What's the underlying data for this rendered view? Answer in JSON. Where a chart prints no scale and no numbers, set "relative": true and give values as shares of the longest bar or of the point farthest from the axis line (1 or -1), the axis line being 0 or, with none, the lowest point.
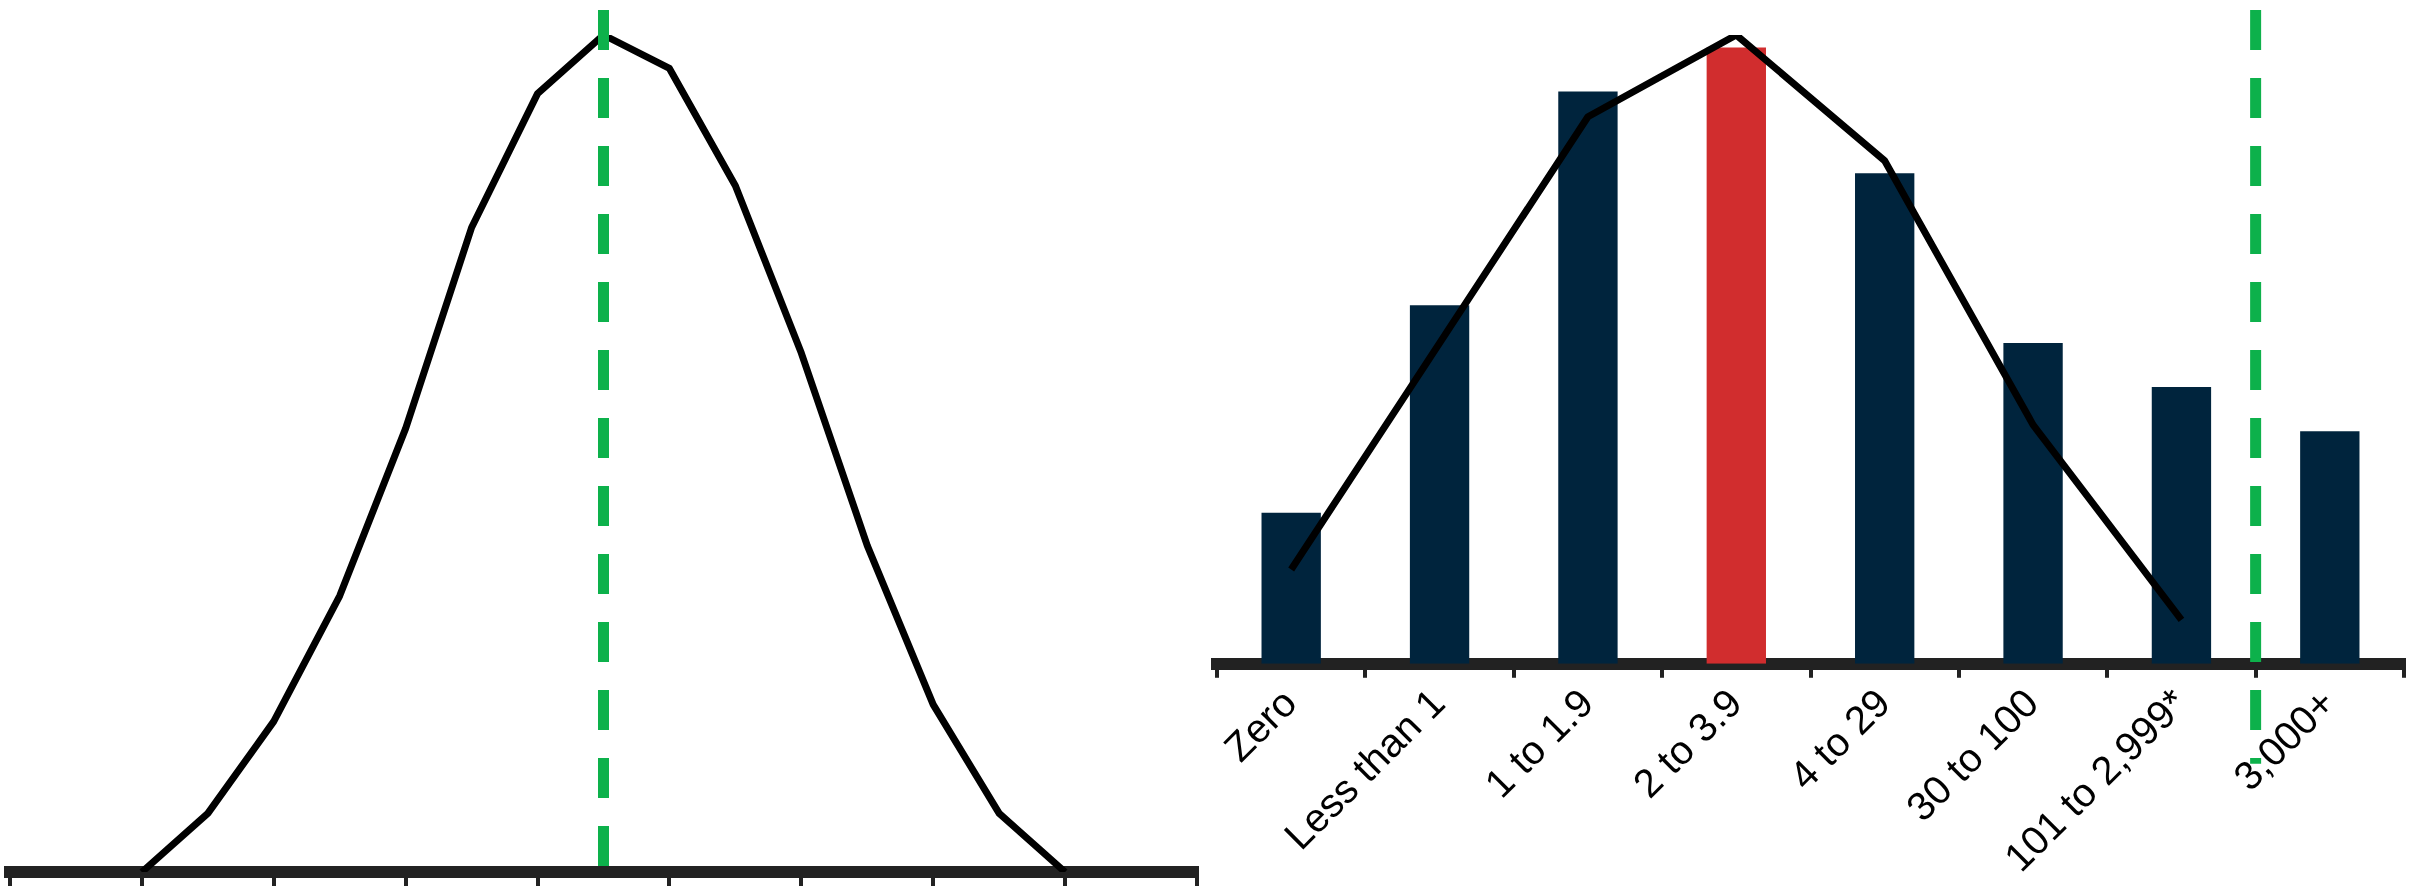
{
  "chart_data": [
    {
      "type": "line",
      "relative": true,
      "tick_labels": false,
      "legend": false,
      "grid": false,
      "marker": "none",
      "categories": [
        null,
        null,
        null,
        null,
        null,
        null,
        null,
        null,
        null,
        null,
        null,
        null,
        null,
        null,
        null,
        null,
        null,
        null,
        null
      ],
      "series": [
        {
          "color": "#000000",
          "values": [
            null,
            null,
            0,
            0.07,
            0.18,
            0.33,
            0.53,
            0.77,
            0.93,
            1,
            0.96,
            0.82,
            0.62,
            0.39,
            0.2,
            0.07,
            0,
            null,
            null
          ]
        }
      ],
      "ref_lines": [
        {
          "axis": "x",
          "color": "#0db14b",
          "line_style": "dashed"
        }
      ]
    },
    {
      "type": "bar",
      "relative": true,
      "tick_labels": "x",
      "legend": false,
      "grid": false,
      "categories": [
        "Zero",
        "Less than 1",
        "1 to 1.9",
        "2 to 3.9",
        "4 to 29",
        "30 to 100",
        "101 to 2,999*",
        "3,000+"
      ],
      "series": [
        {
          "colors": [
            "#00243d",
            "#00243d",
            "#00243d",
            "#d12d2e",
            "#00243d",
            "#00243d",
            "#00243d",
            "#00243d"
          ],
          "values": [
            0.24,
            0.57,
            0.91,
            0.98,
            0.78,
            0.51,
            0.44,
            0.37
          ]
        },
        {
          "type": "line",
          "color": "#000000",
          "marker": "none",
          "values": [
            0.15,
            0.51,
            0.87,
            1,
            0.8,
            0.38,
            0.07,
            null
          ]
        }
      ],
      "ref_lines": [
        {
          "axis": "x",
          "value": "3,000+",
          "color": "#0db14b",
          "line_style": "dashed"
        }
      ]
    }
  ]
}
